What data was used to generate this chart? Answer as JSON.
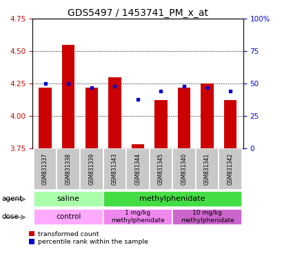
{
  "title": "GDS5497 / 1453741_PM_x_at",
  "samples": [
    "GSM831337",
    "GSM831338",
    "GSM831339",
    "GSM831343",
    "GSM831344",
    "GSM831345",
    "GSM831340",
    "GSM831341",
    "GSM831342"
  ],
  "red_values": [
    4.22,
    4.55,
    4.22,
    4.3,
    3.78,
    4.12,
    4.22,
    4.25,
    4.12
  ],
  "blue_percentiles": [
    50,
    50,
    47,
    48,
    38,
    44,
    48,
    47,
    44
  ],
  "ylim_left": [
    3.75,
    4.75
  ],
  "ylim_right": [
    0,
    100
  ],
  "yticks_left": [
    3.75,
    4.0,
    4.25,
    4.5,
    4.75
  ],
  "yticks_right": [
    0,
    25,
    50,
    75,
    100
  ],
  "yticklabels_right": [
    "0",
    "25",
    "50",
    "75",
    "100%"
  ],
  "bar_bottom": 3.75,
  "bar_color": "#CC0000",
  "dot_color": "#0000CC",
  "title_fontsize": 10,
  "tick_fontsize": 7.5,
  "label_fontsize": 7.5,
  "legend_red_label": "transformed count",
  "legend_blue_label": "percentile rank within the sample",
  "left_axis_color": "#CC0000",
  "right_axis_color": "#0000CC",
  "saline_color": "#AAFFAA",
  "methyl_color": "#44DD44",
  "control_color": "#FFAAFF",
  "dose1_color": "#EE88EE",
  "dose10_color": "#CC66CC",
  "xticklabel_bg": "#C8C8C8",
  "gridline_ticks": [
    4.0,
    4.25,
    4.5
  ]
}
